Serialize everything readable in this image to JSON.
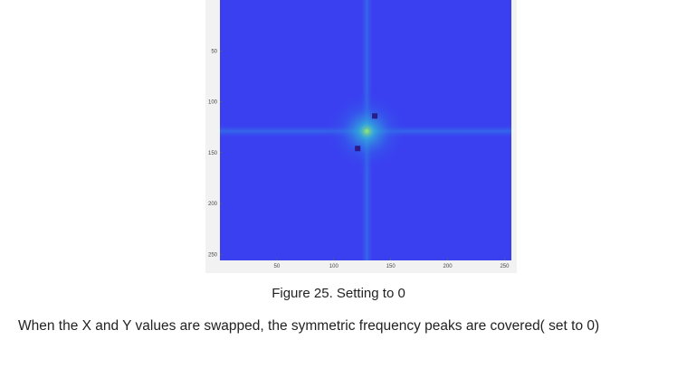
{
  "figure": {
    "caption": "Figure 25. Setting to 0",
    "plot": {
      "colors": {
        "background": "#3a3ff0",
        "mid": "#2f7fe8",
        "peak": "#7fe080",
        "masked": "#2a1a8a",
        "frame": "#f2f2f2"
      },
      "x_ticks": [
        "50",
        "100",
        "150",
        "200",
        "250"
      ],
      "y_ticks": [
        "50",
        "100",
        "150",
        "200",
        "250"
      ],
      "x_tick_values": [
        50,
        100,
        150,
        200,
        250
      ],
      "y_tick_values": [
        50,
        100,
        150,
        200,
        250
      ],
      "xlim": [
        0,
        256
      ],
      "ylim": [
        0,
        256
      ],
      "center": [
        129,
        129
      ],
      "masked_points": [
        [
          136,
          114
        ],
        [
          121,
          146
        ]
      ]
    }
  },
  "body": {
    "text": "When the X and Y values are swapped, the symmetric frequency peaks are covered( set to 0)"
  }
}
